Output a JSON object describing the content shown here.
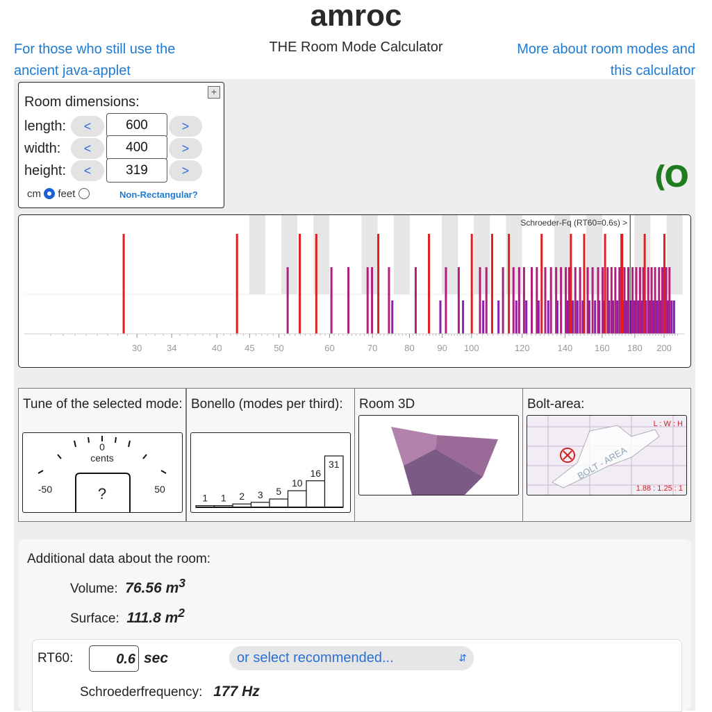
{
  "header": {
    "title": "amroc",
    "subtitle": "THE Room Mode Calculator",
    "left_link": [
      "For those who still use the",
      "ancient java-applet"
    ],
    "right_link": [
      "More about room modes and",
      "this calculator"
    ]
  },
  "dimensions": {
    "title": "Room dimensions:",
    "rows": [
      {
        "label": "length:",
        "value": "600"
      },
      {
        "label": "width:",
        "value": "400"
      },
      {
        "label": "height:",
        "value": "319"
      }
    ],
    "dec_label": "<",
    "inc_label": ">",
    "unit_cm": "cm",
    "unit_feet": "feet",
    "unit_selected": "cm",
    "non_rect_link": "Non-Rectangular?",
    "expand_icon": "plus-square-icon"
  },
  "logo_text": "(O",
  "mode_chart": {
    "schroeder_label": "Schroeder-Fq (RT60=0.6s) >",
    "schroeder_freq": 177,
    "x_ticks": [
      "30",
      "34",
      "40",
      "45",
      "50",
      "60",
      "70",
      "80",
      "90",
      "100",
      "120",
      "140",
      "160",
      "180",
      "200"
    ],
    "colors": {
      "axial": "#e02020",
      "tangential": "#b0207a",
      "oblique": "#8a1fb0"
    },
    "axial_modes": [
      28.6,
      43.0,
      53.9,
      57.2,
      71.5,
      85.8,
      100.1,
      107.7,
      114.4,
      128.7,
      143.0,
      150.0,
      161.7,
      171.5,
      172.0,
      186.5,
      200.2
    ],
    "tangential_modes": [
      51.6,
      60.4,
      64.2,
      68.8,
      69.9,
      74.3,
      81.8,
      91.2,
      95.5,
      103.1,
      105.5,
      112.0,
      116.3,
      118.7,
      120.8,
      124.2,
      126.5,
      130.4,
      133.1,
      135.6,
      138.0,
      140.4,
      142.1,
      145.3,
      147.8,
      151.9,
      154.6,
      157.7,
      160.3,
      163.2,
      165.5,
      167.8,
      170.3,
      173.4,
      175.8,
      178.5,
      180.9,
      183.4,
      185.6,
      188.9,
      191.2,
      193.6,
      196.4,
      198.7,
      201.5,
      203.9
    ],
    "oblique_modes": [
      75.2,
      89.4,
      97.0,
      104.3,
      110.2,
      117.5,
      121.8,
      127.3,
      131.8,
      136.2,
      141.2,
      144.0,
      146.4,
      149.2,
      152.8,
      156.0,
      158.4,
      161.0,
      164.1,
      166.4,
      169.0,
      172.8,
      174.6,
      177.3,
      179.6,
      182.2,
      184.6,
      187.3,
      190.1,
      192.6,
      195.0,
      197.5,
      200.6,
      202.8,
      205.5,
      207.3
    ]
  },
  "tune_panel": {
    "title": "Tune of the selected mode:",
    "center_label": "0",
    "unit": "cents",
    "min_label": "-50",
    "max_label": "50",
    "value": "?"
  },
  "bonello_panel": {
    "title": "Bonello (modes per third):",
    "counts": [
      "1",
      "1",
      "2",
      "3",
      "5",
      "10",
      "16",
      "31"
    ]
  },
  "room3d_panel": {
    "title": "Room 3D"
  },
  "bolt_panel": {
    "title": "Bolt-area:",
    "ratio_header": "L : W : H",
    "ratio": "1.88 : 1.25 : 1",
    "area_text": "BOLT - AREA",
    "marker_icon": "x-circle-icon"
  },
  "additional": {
    "title": "Additional data about the room:",
    "volume_label": "Volume:",
    "volume_value": "76.56 m",
    "volume_exp": "3",
    "surface_label": "Surface:",
    "surface_value": "111.8 m",
    "surface_exp": "2",
    "rt60_label": "RT60:",
    "rt60_value": "0.6",
    "rt60_unit": "sec",
    "rt60_select": "or select recommended...",
    "schroeder_label": "Schroederfrequency:",
    "schroeder_value": "177 Hz"
  }
}
